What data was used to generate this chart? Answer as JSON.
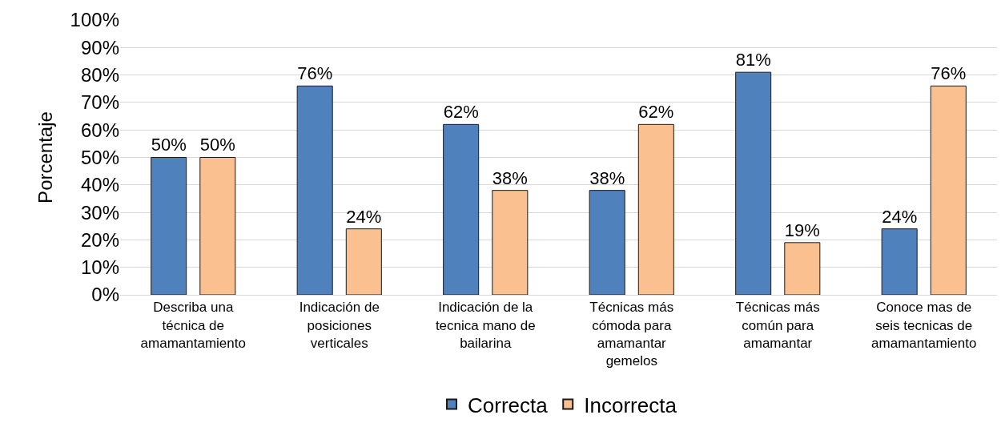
{
  "chart_data": {
    "type": "bar",
    "ylabel": "Porcentaje",
    "categories": [
      "Describa una técnica de amamantamiento",
      "Indicación de posiciones verticales",
      "Indicación de la tecnica mano de bailarina",
      "Técnicas más cómoda para amamantar gemelos",
      "Técnicas más común para amamantar",
      "Conoce mas de seis tecnicas de amamantamiento"
    ],
    "series": [
      {
        "name": "Correcta",
        "color": "#4f81bd",
        "values": [
          50,
          76,
          62,
          38,
          81,
          24
        ],
        "value_labels": [
          "50%",
          "76%",
          "62%",
          "38%",
          "81%",
          "24%"
        ]
      },
      {
        "name": "Incorrecta",
        "color": "#fac090",
        "values": [
          50,
          24,
          38,
          62,
          19,
          76
        ],
        "value_labels": [
          "50%",
          "24%",
          "38%",
          "62%",
          "19%",
          "76%"
        ]
      }
    ],
    "ylim": [
      0,
      100
    ],
    "yticks": [
      {
        "value": 0,
        "label": "0%"
      },
      {
        "value": 10,
        "label": "10%"
      },
      {
        "value": 20,
        "label": "20%"
      },
      {
        "value": 30,
        "label": "30%"
      },
      {
        "value": 40,
        "label": "40%"
      },
      {
        "value": 50,
        "label": "50%"
      },
      {
        "value": 60,
        "label": "60%"
      },
      {
        "value": 70,
        "label": "70%"
      },
      {
        "value": 80,
        "label": "80%"
      },
      {
        "value": 90,
        "label": "90%"
      },
      {
        "value": 100,
        "label": "100%"
      }
    ],
    "grid": "y",
    "legend": "bottom"
  }
}
